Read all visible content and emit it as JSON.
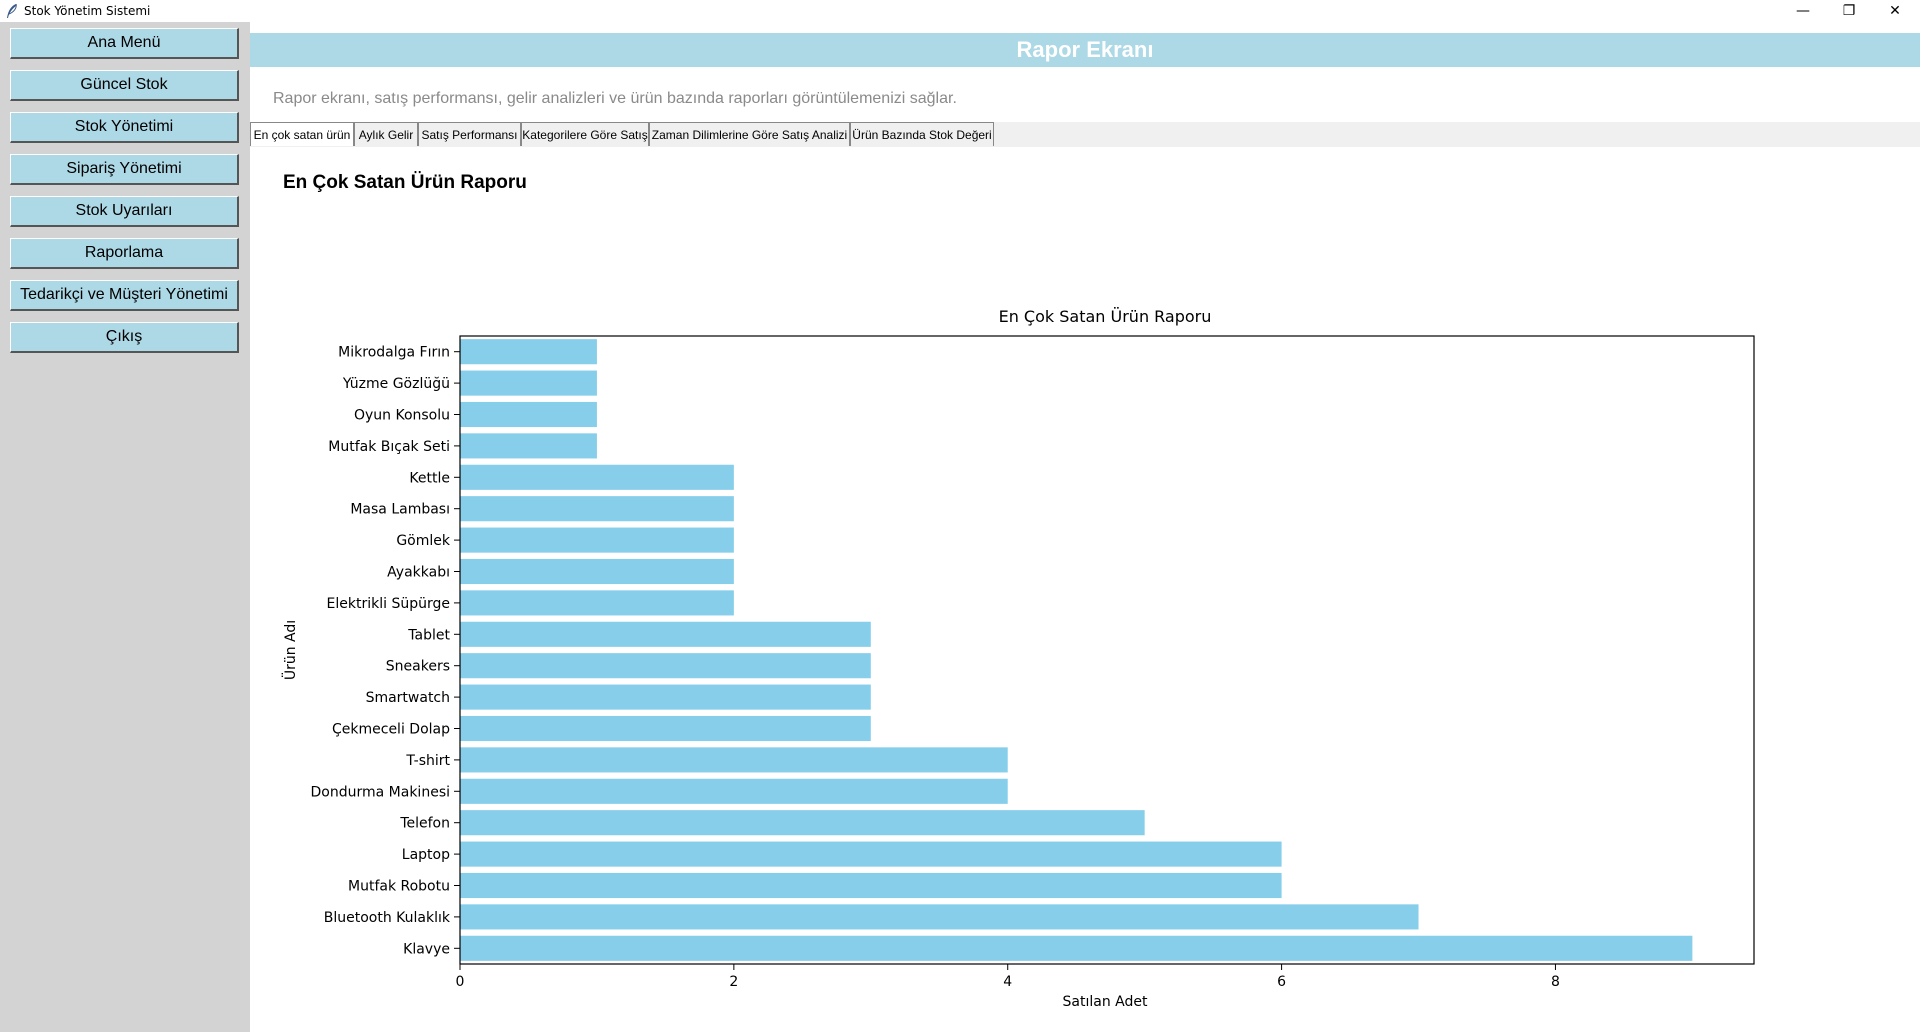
{
  "window": {
    "title": "Stok Yönetim Sistemi",
    "controls": {
      "minimize": "—",
      "maximize": "❐",
      "close": "✕"
    }
  },
  "sidebar": {
    "items": [
      {
        "label": "Ana Menü"
      },
      {
        "label": "Güncel Stok"
      },
      {
        "label": "Stok Yönetimi"
      },
      {
        "label": "Sipariş Yönetimi"
      },
      {
        "label": "Stok Uyarıları"
      },
      {
        "label": "Raporlama"
      },
      {
        "label": "Tedarikçi ve Müşteri Yönetimi"
      },
      {
        "label": "Çıkış"
      }
    ]
  },
  "header": {
    "title": "Rapor Ekranı"
  },
  "description": "Rapor ekranı, satış performansı, gelir analizleri ve ürün bazında raporları görüntülemenizi sağlar.",
  "tabs": [
    {
      "label": "En çok satan ürün"
    },
    {
      "label": "Aylık Gelir"
    },
    {
      "label": "Satış Performansı"
    },
    {
      "label": "Kategorilere Göre Satış"
    },
    {
      "label": "Zaman Dilimlerine Göre Satış Analizi"
    },
    {
      "label": "Ürün Bazında Stok Değeri"
    }
  ],
  "report": {
    "heading": "En Çok Satan Ürün Raporu"
  },
  "colors": {
    "accent": "#add8e6",
    "bar": "#87ceeb",
    "sidebar": "#d3d3d3"
  },
  "chart_data": {
    "type": "bar",
    "orientation": "horizontal",
    "title": "En Çok Satan Ürün Raporu",
    "xlabel": "Satılan Adet",
    "ylabel": "Ürün Adı",
    "xlim": [
      0,
      9.45
    ],
    "xticks": [
      0,
      2,
      4,
      6,
      8
    ],
    "grid": false,
    "categories": [
      "Klavye",
      "Bluetooth Kulaklık",
      "Mutfak Robotu",
      "Laptop",
      "Telefon",
      "Dondurma Makinesi",
      "T-shirt",
      "Çekmeceli Dolap",
      "Smartwatch",
      "Sneakers",
      "Tablet",
      "Elektrikli Süpürge",
      "Ayakkabı",
      "Gömlek",
      "Masa Lambası",
      "Kettle",
      "Mutfak Bıçak Seti",
      "Oyun Konsolu",
      "Yüzme Gözlüğü",
      "Mikrodalga Fırın"
    ],
    "values": [
      9,
      7,
      6,
      6,
      5,
      4,
      4,
      3,
      3,
      3,
      3,
      2,
      2,
      2,
      2,
      2,
      1,
      1,
      1,
      1
    ]
  }
}
